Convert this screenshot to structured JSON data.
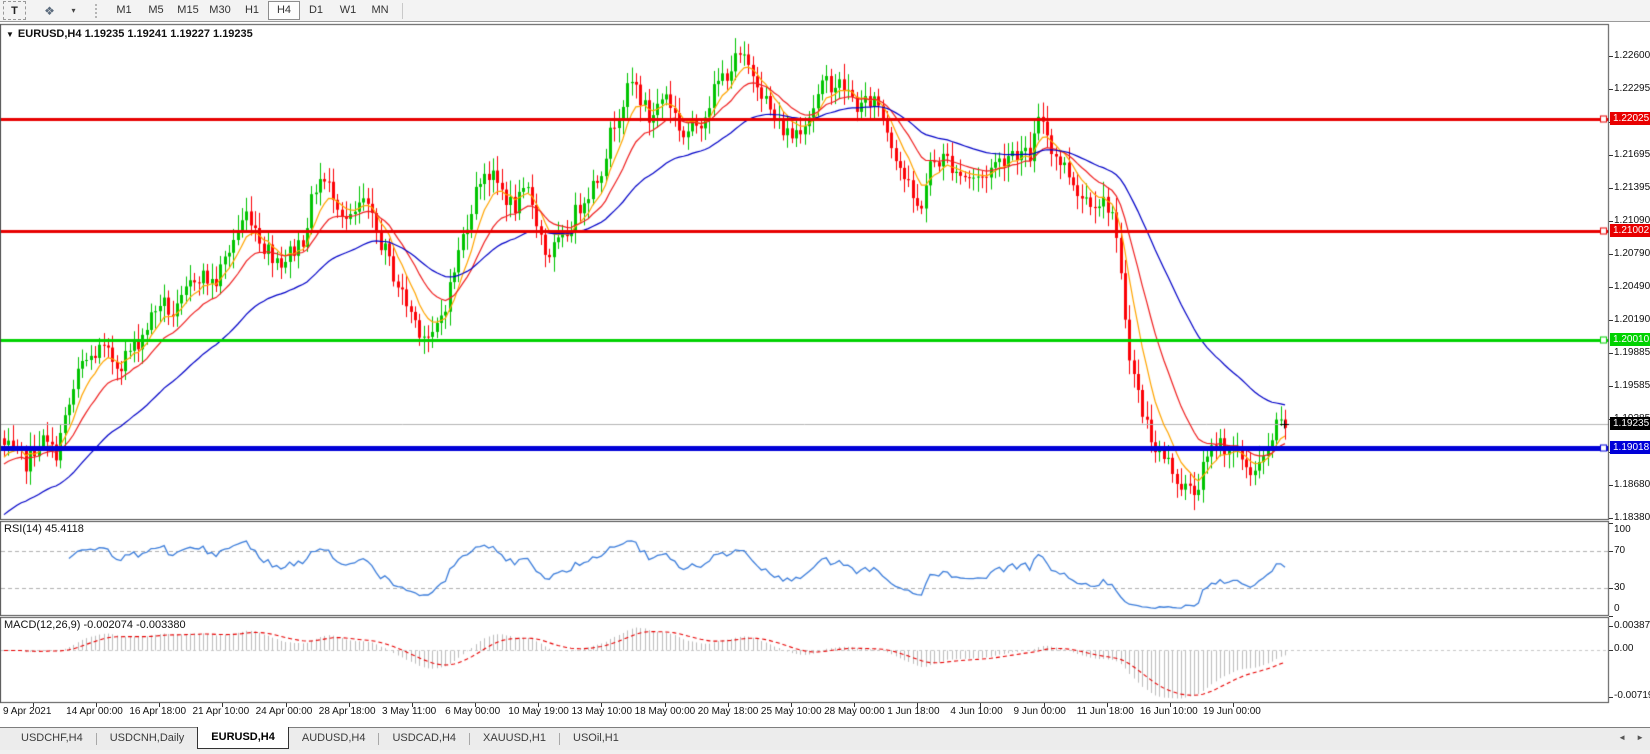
{
  "toolbar": {
    "text_tool_label": "T",
    "timeframes": [
      "M1",
      "M5",
      "M15",
      "M30",
      "H1",
      "H4",
      "D1",
      "W1",
      "MN"
    ],
    "active_timeframe": "H4"
  },
  "icons": {
    "chart_collapse": "▼",
    "palette": "❖",
    "dropdown": "▾",
    "tab_scroll_left": "◄",
    "tab_scroll_right": "►"
  },
  "chart": {
    "title_symbol": "EURUSD,H4",
    "title_ohlc": "1.19235 1.19241 1.19227 1.19235",
    "price_axis_ticks": [
      "1.22600",
      "1.22295",
      "1.21995",
      "1.21695",
      "1.21395",
      "1.21090",
      "1.20790",
      "1.20490",
      "1.20190",
      "1.19885",
      "1.19585",
      "1.19285",
      "1.18985",
      "1.18680",
      "1.18380"
    ],
    "levels": [
      {
        "price": 1.22025,
        "label": "1.22025",
        "color": "#e80000",
        "width": 3
      },
      {
        "price": 1.21002,
        "label": "1.21002",
        "color": "#e80000",
        "width": 3
      },
      {
        "price": 1.2001,
        "label": "1.20010",
        "color": "#00d200",
        "width": 3
      },
      {
        "price": 1.19018,
        "label": "1.19018",
        "color": "#0000d8",
        "width": 5
      }
    ],
    "current_price": {
      "price": 1.19235,
      "label": "1.19235",
      "line_color": "#b4b4b4",
      "badge_color": "#000000"
    },
    "date_labels": [
      "9 Apr 2021",
      "14 Apr 00:00",
      "16 Apr 18:00",
      "21 Apr 10:00",
      "24 Apr 00:00",
      "28 Apr 18:00",
      "3 May 11:00",
      "6 May 00:00",
      "10 May 19:00",
      "13 May 10:00",
      "18 May 00:00",
      "20 May 18:00",
      "25 May 10:00",
      "28 May 00:00",
      "1 Jun 18:00",
      "4 Jun 10:00",
      "9 Jun 00:00",
      "11 Jun 18:00",
      "16 Jun 10:00",
      "19 Jun 00:00"
    ],
    "colors": {
      "up": "#00c400",
      "down": "#fb0207",
      "ma_fast": "#ffa500",
      "ma_mid": "#f02020",
      "ma_slow": "#0000c8",
      "border": "#4a4a4a"
    },
    "price_waypoints": [
      [
        4,
        1.1903
      ],
      [
        25,
        1.1888
      ],
      [
        40,
        1.1911
      ],
      [
        55,
        1.1896
      ],
      [
        80,
        1.1976
      ],
      [
        100,
        1.1992
      ],
      [
        118,
        1.1978
      ],
      [
        140,
        1.2002
      ],
      [
        160,
        1.2036
      ],
      [
        175,
        1.2022
      ],
      [
        196,
        1.2062
      ],
      [
        215,
        1.2052
      ],
      [
        235,
        1.2096
      ],
      [
        248,
        1.2119
      ],
      [
        263,
        1.2087
      ],
      [
        282,
        1.2072
      ],
      [
        302,
        1.2092
      ],
      [
        318,
        1.2149
      ],
      [
        333,
        1.2136
      ],
      [
        348,
        1.2106
      ],
      [
        363,
        1.2127
      ],
      [
        382,
        1.2087
      ],
      [
        402,
        1.2042
      ],
      [
        418,
        1.2013
      ],
      [
        432,
        1.1999
      ],
      [
        448,
        1.2042
      ],
      [
        466,
        1.2107
      ],
      [
        483,
        1.2157
      ],
      [
        499,
        1.2141
      ],
      [
        513,
        1.2121
      ],
      [
        529,
        1.2137
      ],
      [
        546,
        1.2077
      ],
      [
        563,
        1.2092
      ],
      [
        581,
        1.2127
      ],
      [
        599,
        1.2152
      ],
      [
        616,
        1.2207
      ],
      [
        633,
        1.2237
      ],
      [
        649,
        1.2202
      ],
      [
        666,
        1.2227
      ],
      [
        683,
        1.2187
      ],
      [
        701,
        1.2202
      ],
      [
        719,
        1.2237
      ],
      [
        739,
        1.2259
      ],
      [
        756,
        1.2242
      ],
      [
        773,
        1.2202
      ],
      [
        791,
        1.2187
      ],
      [
        809,
        1.2207
      ],
      [
        826,
        1.2237
      ],
      [
        843,
        1.2232
      ],
      [
        859,
        1.2212
      ],
      [
        876,
        1.2222
      ],
      [
        893,
        1.2177
      ],
      [
        909,
        1.2137
      ],
      [
        919,
        1.2117
      ],
      [
        931,
        1.2162
      ],
      [
        946,
        1.2167
      ],
      [
        961,
        1.2152
      ],
      [
        979,
        1.2147
      ],
      [
        996,
        1.2162
      ],
      [
        1013,
        1.2174
      ],
      [
        1029,
        1.2167
      ],
      [
        1041,
        1.2207
      ],
      [
        1053,
        1.2172
      ],
      [
        1066,
        1.2157
      ],
      [
        1081,
        1.2132
      ],
      [
        1096,
        1.2129
      ],
      [
        1111,
        1.2123
      ],
      [
        1121,
        1.2052
      ],
      [
        1131,
        1.1977
      ],
      [
        1143,
        1.1932
      ],
      [
        1156,
        1.1902
      ],
      [
        1169,
        1.1887
      ],
      [
        1181,
        1.1869
      ],
      [
        1193,
        1.1859
      ],
      [
        1205,
        1.1886
      ],
      [
        1217,
        1.1909
      ],
      [
        1229,
        1.1901
      ],
      [
        1241,
        1.1893
      ],
      [
        1253,
        1.1879
      ],
      [
        1265,
        1.1891
      ],
      [
        1275,
        1.1919
      ],
      [
        1285,
        1.1924
      ]
    ]
  },
  "rsi": {
    "label": "RSI(14) 45.4118",
    "ticks": [
      "100",
      "70",
      "30",
      "0"
    ],
    "levels": [
      70,
      30
    ],
    "line_color": "#3d7edb"
  },
  "macd": {
    "label": "MACD(12,26,9) -0.002074 -0.003380",
    "ticks": [
      "0.003873",
      "0.00",
      "-0.00719"
    ],
    "bar_color": "#bdbdbd",
    "signal_color": "#e80000"
  },
  "tabs": [
    "USDCHF,H4",
    "USDCNH,Daily",
    "EURUSD,H4",
    "AUDUSD,H4",
    "USDCAD,H4",
    "XAUUSD,H1",
    "USOil,H1"
  ],
  "active_tab": "EURUSD,H4"
}
